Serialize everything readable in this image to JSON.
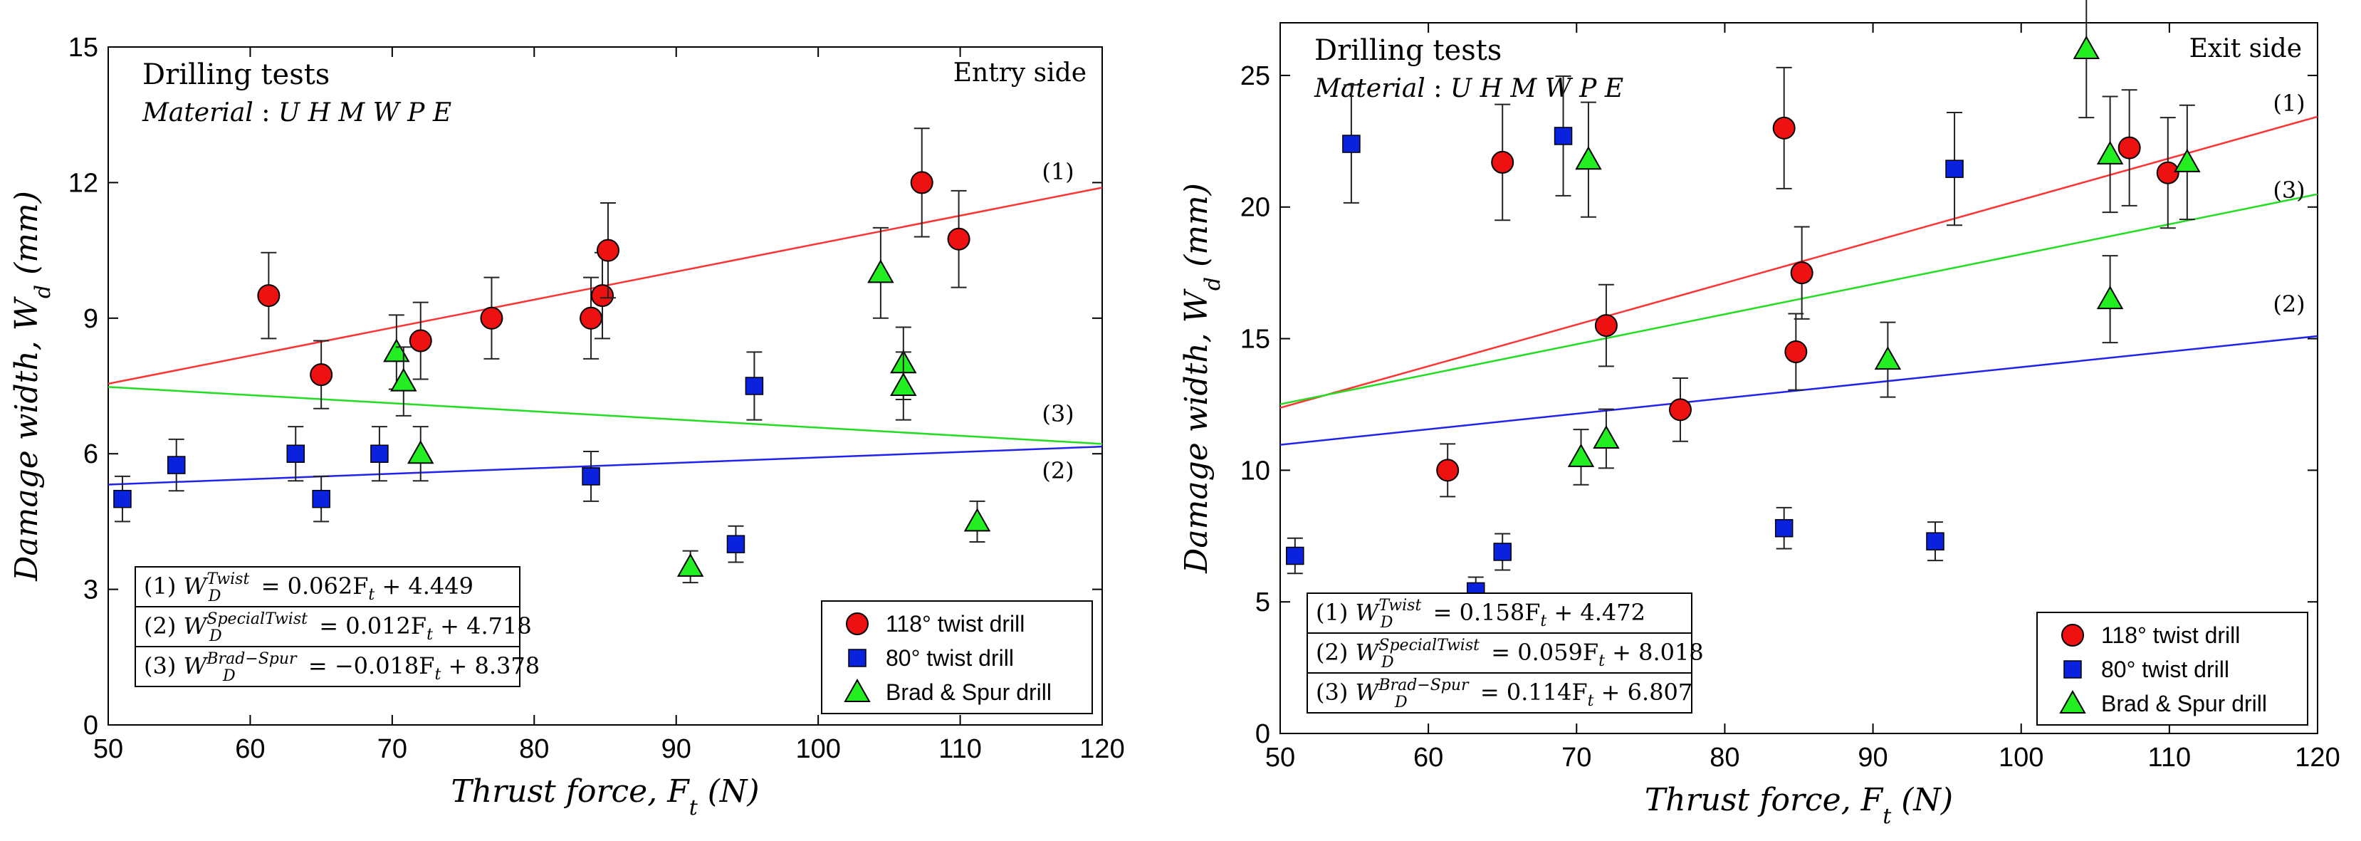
{
  "chart_data": [
    {
      "type": "scatter",
      "title": "Drilling tests",
      "material_label": "Material : UHMWPE",
      "side_label": "Entry side",
      "xlabel": "Thrust force, F_t (N)",
      "ylabel": "Damage width, W_d (mm)",
      "xlim": [
        50,
        120
      ],
      "ylim": [
        0,
        15
      ],
      "xticks": [
        50,
        60,
        70,
        80,
        90,
        100,
        110,
        120
      ],
      "yticks": [
        0,
        3,
        6,
        9,
        12,
        15
      ],
      "grid": false,
      "legend_position": "bottom-right",
      "series": [
        {
          "name": "118° twist drill",
          "marker": "circle",
          "color": "#ee1111",
          "points": [
            {
              "x": 61.3,
              "y": 9.5,
              "err": 0.95
            },
            {
              "x": 65.0,
              "y": 7.75,
              "err": 0.75
            },
            {
              "x": 72.0,
              "y": 8.5,
              "err": 0.85
            },
            {
              "x": 77.0,
              "y": 9.0,
              "err": 0.9
            },
            {
              "x": 84.0,
              "y": 9.0,
              "err": 0.9
            },
            {
              "x": 84.8,
              "y": 9.5,
              "err": 0.95
            },
            {
              "x": 85.2,
              "y": 10.5,
              "err": 1.05
            },
            {
              "x": 107.3,
              "y": 12.0,
              "err": 1.2
            },
            {
              "x": 109.9,
              "y": 10.75,
              "err": 1.07
            }
          ]
        },
        {
          "name": "80° twist drill",
          "marker": "square",
          "color": "#0a22dd",
          "points": [
            {
              "x": 51.0,
              "y": 5.0,
              "err": 0.5
            },
            {
              "x": 54.8,
              "y": 5.75,
              "err": 0.57
            },
            {
              "x": 63.2,
              "y": 6.0,
              "err": 0.6
            },
            {
              "x": 65.0,
              "y": 5.0,
              "err": 0.5
            },
            {
              "x": 69.1,
              "y": 6.0,
              "err": 0.6
            },
            {
              "x": 84.0,
              "y": 5.5,
              "err": 0.55
            },
            {
              "x": 94.2,
              "y": 4.0,
              "err": 0.4
            },
            {
              "x": 95.5,
              "y": 7.5,
              "err": 0.75
            }
          ]
        },
        {
          "name": "Brad & Spur drill",
          "marker": "triangle",
          "color": "#22ee22",
          "points": [
            {
              "x": 70.3,
              "y": 8.25,
              "err": 0.82
            },
            {
              "x": 70.8,
              "y": 7.6,
              "err": 0.76
            },
            {
              "x": 72.0,
              "y": 6.0,
              "err": 0.6
            },
            {
              "x": 91.0,
              "y": 3.5,
              "err": 0.35
            },
            {
              "x": 104.4,
              "y": 10.0,
              "err": 1.0
            },
            {
              "x": 106.0,
              "y": 8.0,
              "err": 0.8
            },
            {
              "x": 106.0,
              "y": 7.5,
              "err": 0.75
            },
            {
              "x": 111.2,
              "y": 4.5,
              "err": 0.45
            }
          ]
        }
      ],
      "fit_lines": [
        {
          "label": "(1)",
          "color": "#ff3333",
          "slope": 0.062,
          "intercept": 4.449
        },
        {
          "label": "(2)",
          "color": "#2222ee",
          "slope": 0.012,
          "intercept": 4.718
        },
        {
          "label": "(3)",
          "color": "#22dd22",
          "slope": -0.018,
          "intercept": 8.378
        }
      ],
      "equations": [
        {
          "prefix": "(1)",
          "sup": "Twist",
          "rhs": "= 0.062F_t + 4.449"
        },
        {
          "prefix": "(2)",
          "sup": "SpecialTwist",
          "rhs": "= 0.012F_t + 4.718"
        },
        {
          "prefix": "(3)",
          "sup": "Brad−Spur",
          "rhs": "= −0.018F_t + 8.378"
        }
      ]
    },
    {
      "type": "scatter",
      "title": "Drilling tests",
      "material_label": "Material : UHMWPE",
      "side_label": "Exit side",
      "xlabel": "Thrust force, F_t (N)",
      "ylabel": "Damage width, W_d (mm)",
      "xlim": [
        50,
        120
      ],
      "ylim": [
        0,
        27
      ],
      "xticks": [
        50,
        60,
        70,
        80,
        90,
        100,
        110,
        120
      ],
      "yticks": [
        0,
        5,
        10,
        15,
        20,
        25
      ],
      "grid": false,
      "legend_position": "bottom-right",
      "series": [
        {
          "name": "118° twist drill",
          "marker": "circle",
          "color": "#ee1111",
          "points": [
            {
              "x": 61.3,
              "y": 10.0,
              "err": 1.0
            },
            {
              "x": 65.0,
              "y": 21.7,
              "err": 2.2
            },
            {
              "x": 72.0,
              "y": 15.5,
              "err": 1.55
            },
            {
              "x": 77.0,
              "y": 12.3,
              "err": 1.2
            },
            {
              "x": 84.0,
              "y": 23.0,
              "err": 2.3
            },
            {
              "x": 84.8,
              "y": 14.5,
              "err": 1.45
            },
            {
              "x": 85.2,
              "y": 17.5,
              "err": 1.75
            },
            {
              "x": 107.3,
              "y": 22.25,
              "err": 2.2
            },
            {
              "x": 109.9,
              "y": 21.3,
              "err": 2.1
            }
          ]
        },
        {
          "name": "80° twist drill",
          "marker": "square",
          "color": "#0a22dd",
          "points": [
            {
              "x": 51.0,
              "y": 6.75,
              "err": 0.67
            },
            {
              "x": 54.8,
              "y": 22.4,
              "err": 2.24
            },
            {
              "x": 63.2,
              "y": 5.4,
              "err": 0.54
            },
            {
              "x": 65.0,
              "y": 6.9,
              "err": 0.69
            },
            {
              "x": 69.1,
              "y": 22.7,
              "err": 2.27
            },
            {
              "x": 84.0,
              "y": 7.8,
              "err": 0.78
            },
            {
              "x": 94.2,
              "y": 7.3,
              "err": 0.73
            },
            {
              "x": 95.5,
              "y": 21.45,
              "err": 2.14
            }
          ]
        },
        {
          "name": "Brad & Spur drill",
          "marker": "triangle",
          "color": "#22ee22",
          "points": [
            {
              "x": 70.3,
              "y": 10.5,
              "err": 1.05
            },
            {
              "x": 70.8,
              "y": 21.8,
              "err": 2.18
            },
            {
              "x": 72.0,
              "y": 11.2,
              "err": 1.12
            },
            {
              "x": 91.0,
              "y": 14.2,
              "err": 1.42
            },
            {
              "x": 104.4,
              "y": 26.0,
              "err": 2.6
            },
            {
              "x": 106.0,
              "y": 22.0,
              "err": 2.2
            },
            {
              "x": 106.0,
              "y": 16.5,
              "err": 1.65
            },
            {
              "x": 111.2,
              "y": 21.7,
              "err": 2.17
            }
          ]
        }
      ],
      "fit_lines": [
        {
          "label": "(1)",
          "color": "#ff3333",
          "slope": 0.158,
          "intercept": 4.472
        },
        {
          "label": "(2)",
          "color": "#2222ee",
          "slope": 0.059,
          "intercept": 8.018
        },
        {
          "label": "(3)",
          "color": "#22dd22",
          "slope": 0.114,
          "intercept": 6.807
        }
      ],
      "equations": [
        {
          "prefix": "(1)",
          "sup": "Twist",
          "rhs": "= 0.158F_t + 4.472"
        },
        {
          "prefix": "(2)",
          "sup": "SpecialTwist",
          "rhs": "= 0.059F_t + 8.018"
        },
        {
          "prefix": "(3)",
          "sup": "Brad−Spur",
          "rhs": "= 0.114F_t + 6.807"
        }
      ]
    }
  ]
}
